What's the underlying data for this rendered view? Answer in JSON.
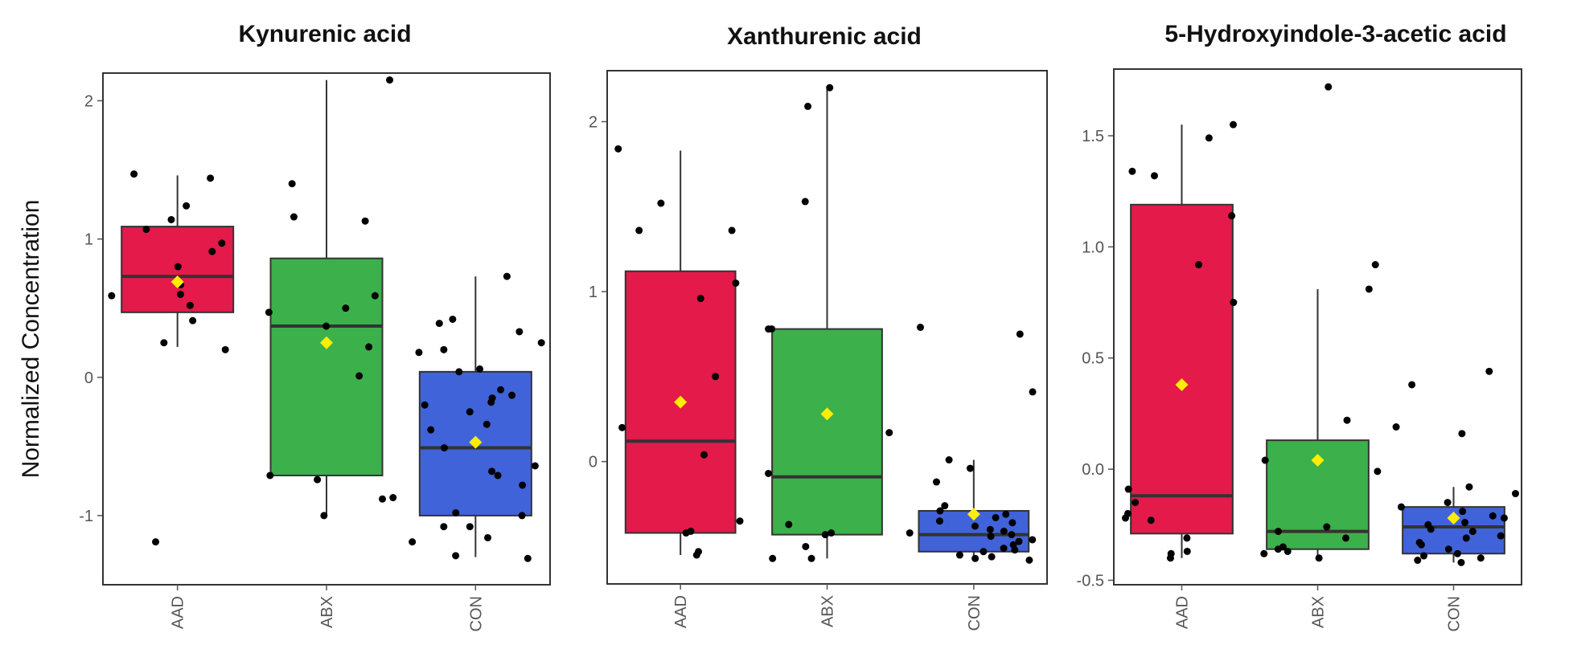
{
  "ylabel": "Normalized Concentration",
  "colors": {
    "AAD": "#e31a4a",
    "ABX": "#3cb04a",
    "CON": "#4163d9",
    "mean_marker": "#ffee00",
    "points": "#000000",
    "median_line": "#333333"
  },
  "chart_data": [
    {
      "type": "box",
      "title": "Kynurenic acid",
      "categories": [
        "AAD",
        "ABX",
        "CON"
      ],
      "ylim": [
        -1.5,
        2.2
      ],
      "yticks": [
        -1,
        0,
        1,
        2
      ],
      "ytick_labels": [
        "-1",
        "0",
        "1",
        "2"
      ],
      "grid": false,
      "boxes": [
        {
          "group": "AAD",
          "q1": 0.47,
          "median": 0.73,
          "q3": 1.09,
          "whisker_low": 0.22,
          "whisker_high": 1.46,
          "mean": 0.69,
          "points": [
            1.47,
            1.44,
            1.24,
            1.14,
            1.07,
            0.97,
            0.91,
            0.8,
            0.67,
            0.6,
            0.59,
            0.52,
            0.41,
            0.25,
            0.2,
            -1.19
          ]
        },
        {
          "group": "ABX",
          "q1": -0.71,
          "median": 0.37,
          "q3": 0.86,
          "whisker_low": -1.0,
          "whisker_high": 2.15,
          "mean": 0.25,
          "points": [
            2.15,
            1.4,
            1.16,
            1.13,
            0.59,
            0.5,
            0.47,
            0.37,
            0.22,
            0.01,
            -0.71,
            -0.74,
            -0.87,
            -0.88,
            -1.0
          ]
        },
        {
          "group": "CON",
          "q1": -1.0,
          "median": -0.51,
          "q3": 0.04,
          "whisker_low": -1.3,
          "whisker_high": 0.73,
          "mean": -0.47,
          "points": [
            0.73,
            0.42,
            0.39,
            0.33,
            0.25,
            0.2,
            0.18,
            0.06,
            0.04,
            -0.09,
            -0.13,
            -0.15,
            -0.18,
            -0.2,
            -0.25,
            -0.34,
            -0.38,
            -0.51,
            -0.64,
            -0.68,
            -0.71,
            -0.78,
            -0.98,
            -1.0,
            -1.08,
            -1.08,
            -1.16,
            -1.19,
            -1.29,
            -1.31
          ]
        }
      ]
    },
    {
      "type": "box",
      "title": "Xanthurenic acid",
      "categories": [
        "AAD",
        "ABX",
        "CON"
      ],
      "ylim": [
        -0.72,
        2.3
      ],
      "yticks": [
        0,
        1,
        2
      ],
      "ytick_labels": [
        "0",
        "1",
        "2"
      ],
      "grid": false,
      "boxes": [
        {
          "group": "AAD",
          "q1": -0.42,
          "median": 0.12,
          "q3": 1.12,
          "whisker_low": -0.55,
          "whisker_high": 1.83,
          "mean": 0.35,
          "points": [
            1.84,
            1.52,
            1.36,
            1.36,
            1.05,
            0.96,
            0.5,
            0.2,
            0.04,
            -0.35,
            -0.41,
            -0.42,
            -0.53,
            -0.55
          ]
        },
        {
          "group": "ABX",
          "q1": -0.43,
          "median": -0.09,
          "q3": 0.78,
          "whisker_low": -0.57,
          "whisker_high": 2.2,
          "mean": 0.28,
          "points": [
            2.2,
            2.09,
            1.53,
            0.78,
            0.78,
            0.17,
            -0.07,
            -0.37,
            -0.42,
            -0.43,
            -0.5,
            -0.57,
            -0.57
          ]
        },
        {
          "group": "CON",
          "q1": -0.53,
          "median": -0.43,
          "q3": -0.29,
          "whisker_low": -0.58,
          "whisker_high": 0.01,
          "mean": -0.31,
          "points": [
            0.79,
            0.75,
            0.41,
            0.01,
            -0.04,
            -0.12,
            -0.26,
            -0.29,
            -0.31,
            -0.33,
            -0.35,
            -0.36,
            -0.38,
            -0.4,
            -0.41,
            -0.42,
            -0.43,
            -0.44,
            -0.46,
            -0.47,
            -0.49,
            -0.51,
            -0.52,
            -0.53,
            -0.55,
            -0.56,
            -0.57,
            -0.58
          ]
        }
      ]
    },
    {
      "type": "box",
      "title": "5-Hydroxyindole-3-acetic acid",
      "categories": [
        "AAD",
        "ABX",
        "CON"
      ],
      "ylim": [
        -0.52,
        1.8
      ],
      "yticks": [
        -0.5,
        0.0,
        0.5,
        1.0,
        1.5
      ],
      "ytick_labels": [
        "-0.5",
        "0.0",
        "0.5",
        "1.0",
        "1.5"
      ],
      "grid": false,
      "boxes": [
        {
          "group": "AAD",
          "q1": -0.29,
          "median": -0.12,
          "q3": 1.19,
          "whisker_low": -0.4,
          "whisker_high": 1.55,
          "mean": 0.38,
          "points": [
            1.55,
            1.49,
            1.34,
            1.32,
            1.14,
            0.92,
            0.75,
            -0.09,
            -0.15,
            -0.2,
            -0.22,
            -0.23,
            -0.31,
            -0.37,
            -0.38,
            -0.4
          ]
        },
        {
          "group": "ABX",
          "q1": -0.36,
          "median": -0.28,
          "q3": 0.13,
          "whisker_low": -0.4,
          "whisker_high": 0.81,
          "mean": 0.04,
          "points": [
            1.72,
            0.92,
            0.81,
            0.22,
            0.04,
            -0.01,
            -0.26,
            -0.28,
            -0.31,
            -0.35,
            -0.36,
            -0.37,
            -0.38,
            -0.4
          ]
        },
        {
          "group": "CON",
          "q1": -0.38,
          "median": -0.26,
          "q3": -0.17,
          "whisker_low": -0.42,
          "whisker_high": -0.08,
          "mean": -0.22,
          "points": [
            0.44,
            0.38,
            0.19,
            0.16,
            -0.08,
            -0.11,
            -0.15,
            -0.17,
            -0.19,
            -0.21,
            -0.22,
            -0.24,
            -0.25,
            -0.27,
            -0.28,
            -0.3,
            -0.31,
            -0.33,
            -0.34,
            -0.36,
            -0.38,
            -0.39,
            -0.4,
            -0.41,
            -0.42
          ]
        }
      ]
    }
  ]
}
